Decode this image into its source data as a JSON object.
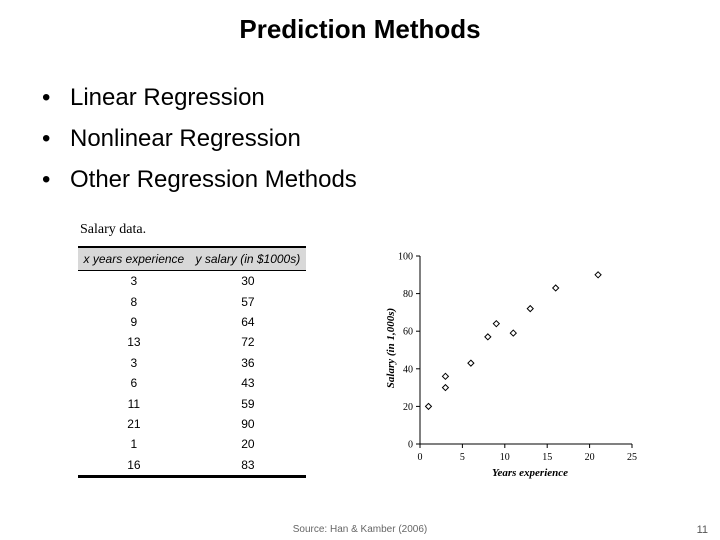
{
  "slide": {
    "title": "Prediction Methods",
    "bullet_char": "•",
    "bullets": [
      "Linear Regression",
      "Nonlinear Regression",
      "Other Regression Methods"
    ],
    "source": "Source: Han & Kamber (2006)",
    "page_number": "11"
  },
  "table": {
    "caption": "Salary data.",
    "headers": [
      "x years experience",
      "y salary (in $1000s)"
    ],
    "rows": [
      [
        "3",
        "30"
      ],
      [
        "8",
        "57"
      ],
      [
        "9",
        "64"
      ],
      [
        "13",
        "72"
      ],
      [
        "3",
        "36"
      ],
      [
        "6",
        "43"
      ],
      [
        "11",
        "59"
      ],
      [
        "21",
        "90"
      ],
      [
        "1",
        "20"
      ],
      [
        "16",
        "83"
      ]
    ]
  },
  "chart_data": {
    "type": "scatter",
    "xlabel": "Years experience",
    "ylabel": "Salary (in 1,000s)",
    "xlim": [
      0,
      25
    ],
    "ylim": [
      0,
      100
    ],
    "xticks": [
      0,
      5,
      10,
      15,
      20,
      25
    ],
    "yticks": [
      0,
      20,
      40,
      60,
      80,
      100
    ],
    "grid": false,
    "marker": "diamond",
    "points": [
      {
        "x": 3,
        "y": 30
      },
      {
        "x": 8,
        "y": 57
      },
      {
        "x": 9,
        "y": 64
      },
      {
        "x": 13,
        "y": 72
      },
      {
        "x": 3,
        "y": 36
      },
      {
        "x": 6,
        "y": 43
      },
      {
        "x": 11,
        "y": 59
      },
      {
        "x": 21,
        "y": 90
      },
      {
        "x": 1,
        "y": 20
      },
      {
        "x": 16,
        "y": 83
      }
    ]
  }
}
